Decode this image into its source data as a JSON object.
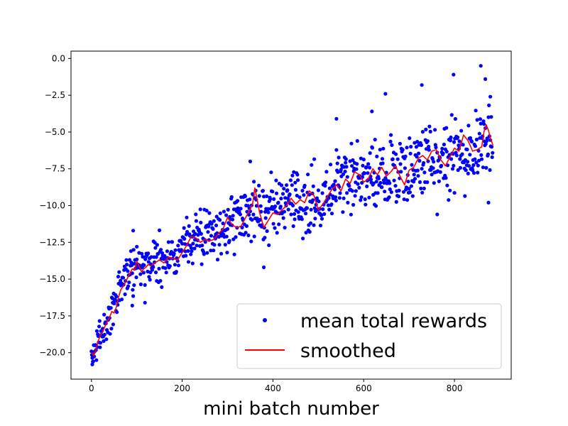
{
  "chart_data": {
    "type": "scatter",
    "xlabel": "mini batch number",
    "ylabel": "",
    "xlim": [
      -45,
      925
    ],
    "ylim": [
      -21.8,
      0.5
    ],
    "xticks": [
      0,
      200,
      400,
      600,
      800
    ],
    "yticks": [
      0.0,
      -2.5,
      -5.0,
      -7.5,
      -10.0,
      -12.5,
      -15.0,
      -17.5,
      -20.0
    ],
    "xtick_labels": [
      "0",
      "200",
      "400",
      "600",
      "800"
    ],
    "ytick_labels": [
      "0.0",
      "−2.5",
      "−5.0",
      "−7.5",
      "−10.0",
      "−12.5",
      "−15.0",
      "−17.5",
      "−20.0"
    ],
    "grid": false,
    "legend_position": "lower-right",
    "colors": {
      "points": "#0000ff",
      "smoothed": "#ff0000"
    },
    "series": [
      {
        "name": "mean total rewards",
        "kind": "points",
        "trend": {
          "x": [
            0,
            10,
            20,
            30,
            40,
            50,
            60,
            70,
            80,
            90,
            100,
            120,
            140,
            160,
            180,
            200,
            220,
            240,
            260,
            280,
            300,
            320,
            340,
            360,
            380,
            400,
            420,
            440,
            460,
            480,
            500,
            520,
            540,
            560,
            580,
            600,
            620,
            640,
            660,
            680,
            700,
            720,
            740,
            760,
            780,
            800,
            820,
            840,
            860,
            880
          ],
          "y": [
            -20.3,
            -19.6,
            -18.8,
            -18.3,
            -17.6,
            -16.9,
            -16.0,
            -15.2,
            -14.5,
            -14.1,
            -13.9,
            -14.0,
            -13.7,
            -13.6,
            -13.6,
            -12.7,
            -12.1,
            -12.1,
            -12.2,
            -11.9,
            -11.2,
            -11.0,
            -10.5,
            -10.1,
            -10.5,
            -10.4,
            -10.2,
            -9.9,
            -9.9,
            -9.6,
            -9.6,
            -9.2,
            -8.6,
            -8.3,
            -8.0,
            -8.1,
            -8.0,
            -7.9,
            -7.6,
            -7.6,
            -7.8,
            -7.2,
            -6.9,
            -6.7,
            -6.6,
            -6.4,
            -6.2,
            -6.0,
            -5.9,
            -6.2
          ],
          "spread": [
            0.5,
            0.6,
            0.7,
            0.8,
            0.8,
            0.9,
            1.0,
            1.0,
            1.1,
            1.1,
            1.2,
            1.2,
            1.2,
            1.2,
            1.2,
            1.2,
            1.3,
            1.3,
            1.3,
            1.3,
            1.4,
            1.4,
            1.4,
            1.4,
            1.4,
            1.4,
            1.5,
            1.5,
            1.5,
            1.5,
            1.5,
            1.5,
            1.6,
            1.6,
            1.6,
            1.6,
            1.6,
            1.6,
            1.7,
            1.7,
            1.7,
            1.7,
            1.7,
            1.7,
            1.8,
            1.8,
            1.8,
            1.8,
            1.8,
            1.8
          ]
        },
        "count": 885,
        "notable_points": [
          {
            "x": 2,
            "y": -20.8
          },
          {
            "x": 4,
            "y": -20.6
          },
          {
            "x": 100,
            "y": -12.8
          },
          {
            "x": 92,
            "y": -11.7
          },
          {
            "x": 350,
            "y": -7.0
          },
          {
            "x": 540,
            "y": -4.1
          },
          {
            "x": 618,
            "y": -3.6
          },
          {
            "x": 648,
            "y": -2.4
          },
          {
            "x": 728,
            "y": -1.8
          },
          {
            "x": 798,
            "y": -1.1
          },
          {
            "x": 858,
            "y": -0.5
          },
          {
            "x": 868,
            "y": -1.4
          },
          {
            "x": 879,
            "y": -2.6
          },
          {
            "x": 875,
            "y": -9.8
          },
          {
            "x": 380,
            "y": -14.2
          },
          {
            "x": 118,
            "y": -16.6
          },
          {
            "x": 90,
            "y": -16.8
          },
          {
            "x": 762,
            "y": -10.6
          }
        ]
      },
      {
        "name": "smoothed",
        "kind": "line",
        "x": [
          0,
          5,
          10,
          15,
          20,
          25,
          30,
          35,
          40,
          45,
          50,
          55,
          60,
          65,
          70,
          75,
          80,
          85,
          90,
          95,
          100,
          105,
          110,
          115,
          120,
          125,
          130,
          140,
          150,
          160,
          170,
          180,
          190,
          200,
          210,
          220,
          230,
          240,
          250,
          260,
          270,
          280,
          290,
          300,
          310,
          320,
          330,
          340,
          350,
          355,
          360,
          370,
          380,
          390,
          400,
          410,
          420,
          430,
          440,
          450,
          460,
          470,
          480,
          490,
          500,
          510,
          520,
          530,
          540,
          550,
          560,
          570,
          580,
          590,
          600,
          610,
          620,
          630,
          640,
          650,
          660,
          670,
          680,
          690,
          700,
          710,
          720,
          730,
          740,
          750,
          760,
          770,
          780,
          790,
          800,
          810,
          820,
          830,
          840,
          850,
          860,
          865,
          870,
          875,
          880,
          885
        ],
        "y": [
          -20.0,
          -20.2,
          -19.8,
          -19.2,
          -18.8,
          -18.6,
          -18.2,
          -17.9,
          -17.6,
          -17.2,
          -17.3,
          -16.9,
          -16.2,
          -15.7,
          -15.5,
          -15.2,
          -14.9,
          -14.6,
          -14.3,
          -14.4,
          -13.8,
          -14.1,
          -14.5,
          -14.3,
          -14.2,
          -14.0,
          -14.1,
          -13.9,
          -13.7,
          -13.9,
          -13.5,
          -13.6,
          -13.7,
          -13.2,
          -12.7,
          -12.1,
          -12.2,
          -12.5,
          -12.3,
          -12.4,
          -12.3,
          -11.9,
          -11.6,
          -10.8,
          -11.3,
          -11.5,
          -11.4,
          -10.8,
          -10.2,
          -9.9,
          -8.8,
          -10.4,
          -11.5,
          -11.0,
          -10.5,
          -10.6,
          -10.3,
          -10.0,
          -9.5,
          -9.9,
          -9.6,
          -9.8,
          -9.0,
          -9.3,
          -10.3,
          -9.9,
          -9.4,
          -8.9,
          -8.6,
          -9.0,
          -8.2,
          -8.5,
          -7.7,
          -7.9,
          -8.4,
          -8.2,
          -7.5,
          -7.9,
          -7.4,
          -8.0,
          -7.7,
          -7.3,
          -8.0,
          -8.6,
          -7.6,
          -7.4,
          -6.8,
          -6.6,
          -6.9,
          -6.3,
          -6.2,
          -6.9,
          -7.3,
          -6.7,
          -6.1,
          -6.3,
          -5.2,
          -5.6,
          -6.3,
          -6.2,
          -6.0,
          -5.0,
          -4.5,
          -4.9,
          -5.5,
          -5.9
        ]
      }
    ]
  }
}
